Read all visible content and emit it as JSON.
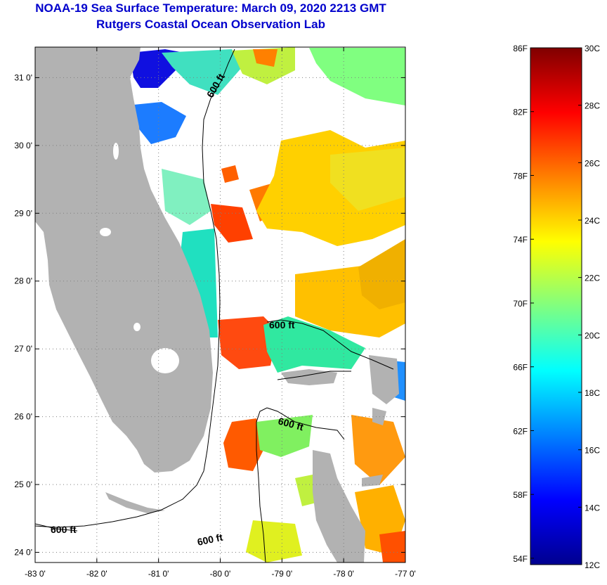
{
  "title": {
    "line1": "NOAA-19 Sea Surface Temperature:  March 09, 2020 2213 GMT",
    "line2": "Rutgers Coastal Ocean Observation Lab"
  },
  "map": {
    "lon_range": [
      -83,
      -77
    ],
    "lat_range": [
      23.85,
      31.45
    ],
    "lon_ticks": [
      {
        "value": -83,
        "label": "-83 0'"
      },
      {
        "value": -82,
        "label": "-82 0'"
      },
      {
        "value": -81,
        "label": "-81 0'"
      },
      {
        "value": -80,
        "label": "-80 0'"
      },
      {
        "value": -79,
        "label": "-79 0'"
      },
      {
        "value": -78,
        "label": "-78 0'"
      },
      {
        "value": -77,
        "label": "-77 0'"
      }
    ],
    "lat_ticks": [
      {
        "value": 24,
        "label": "24 0'"
      },
      {
        "value": 25,
        "label": "25 0'"
      },
      {
        "value": 26,
        "label": "26 0'"
      },
      {
        "value": 27,
        "label": "27 0'"
      },
      {
        "value": 28,
        "label": "28 0'"
      },
      {
        "value": 29,
        "label": "29 0'"
      },
      {
        "value": 30,
        "label": "30 0'"
      },
      {
        "value": 31,
        "label": "31 0'"
      }
    ],
    "contour_labels": [
      "600 ft",
      "600 ft",
      "600 ft",
      "600 ft",
      "600 ft"
    ],
    "colors": {
      "land": "#b2b2b2",
      "contour": "#000000",
      "grid": "#808080"
    }
  },
  "colorbar": {
    "min_c": 12,
    "max_c": 30,
    "fahrenheit_labels": [
      "86F",
      "82F",
      "78F",
      "74F",
      "70F",
      "66F",
      "62F",
      "58F",
      "54F"
    ],
    "celsius_labels": [
      "30C",
      "28C",
      "26C",
      "24C",
      "22C",
      "20C",
      "18C",
      "16C",
      "14C",
      "12C"
    ],
    "gradient_colors": [
      "#00008f",
      "#0000ff",
      "#0080ff",
      "#00ffff",
      "#80ff80",
      "#ffff00",
      "#ff8000",
      "#ff0000",
      "#800000"
    ]
  }
}
